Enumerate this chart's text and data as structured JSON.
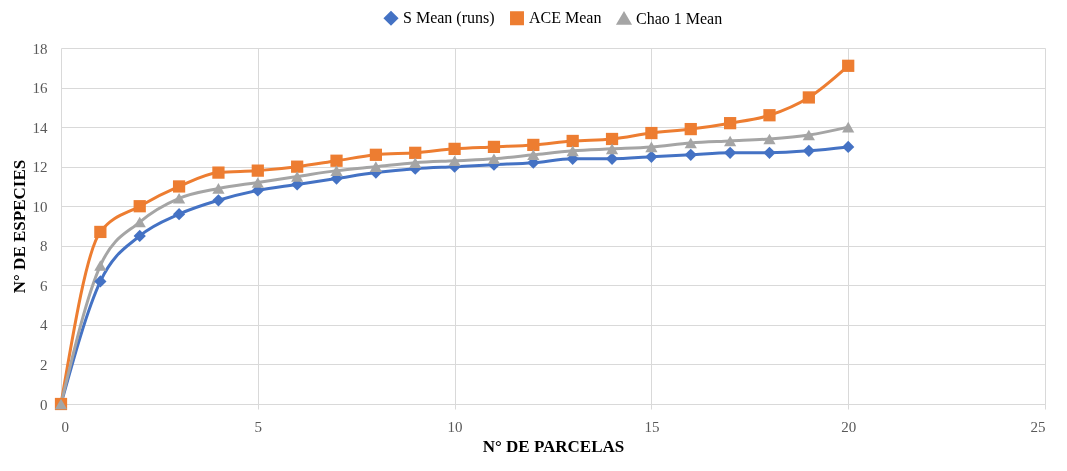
{
  "chart_data": {
    "type": "line",
    "xlabel": "N° DE PARCELAS",
    "ylabel": "N° DE ESPECIES",
    "x": [
      0,
      1,
      2,
      3,
      4,
      5,
      6,
      7,
      8,
      9,
      10,
      11,
      12,
      13,
      14,
      15,
      16,
      17,
      18,
      19,
      20
    ],
    "series": [
      {
        "name": "S Mean (runs)",
        "color": "#4472c4",
        "marker": "diamond",
        "values": [
          0,
          6.2,
          8.5,
          9.6,
          10.3,
          10.8,
          11.1,
          11.4,
          11.7,
          11.9,
          12.0,
          12.1,
          12.2,
          12.4,
          12.4,
          12.5,
          12.6,
          12.7,
          12.7,
          12.8,
          13.0
        ]
      },
      {
        "name": "ACE Mean",
        "color": "#ed7d31",
        "marker": "square",
        "values": [
          0,
          8.7,
          10.0,
          11.0,
          11.7,
          11.8,
          12.0,
          12.3,
          12.6,
          12.7,
          12.9,
          13.0,
          13.1,
          13.3,
          13.4,
          13.7,
          13.9,
          14.2,
          14.6,
          15.5,
          17.1
        ]
      },
      {
        "name": "Chao 1 Mean",
        "color": "#a5a5a5",
        "marker": "triangle",
        "values": [
          0,
          7.0,
          9.2,
          10.4,
          10.9,
          11.2,
          11.5,
          11.8,
          12.0,
          12.2,
          12.3,
          12.4,
          12.6,
          12.8,
          12.9,
          13.0,
          13.2,
          13.3,
          13.4,
          13.6,
          14.0
        ]
      }
    ],
    "xlim": [
      0,
      25
    ],
    "xticks": [
      0,
      5,
      10,
      15,
      20,
      25
    ],
    "ylim": [
      0,
      18
    ],
    "yticks": [
      0,
      2,
      4,
      6,
      8,
      10,
      12,
      14,
      16,
      18
    ],
    "grid": true,
    "legend": "top",
    "line_style": "solid"
  }
}
